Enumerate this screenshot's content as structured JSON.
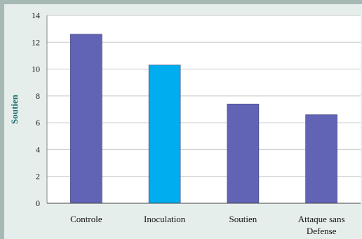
{
  "chart_data": {
    "type": "bar",
    "categories": [
      "Controle",
      "Inoculation",
      "Soutien",
      "Attaque sans Defense"
    ],
    "category_lines": [
      [
        "Controle"
      ],
      [
        "Inoculation"
      ],
      [
        "Soutien"
      ],
      [
        "Attaque sans",
        "Defense"
      ]
    ],
    "values": [
      12.6,
      10.3,
      7.4,
      6.6
    ],
    "ylabel": "Soutien",
    "xlabel": "",
    "title": "",
    "ylim": [
      0,
      14
    ],
    "yticks": [
      0,
      2,
      4,
      6,
      8,
      10,
      12,
      14
    ],
    "grid": true,
    "colors": [
      "#6163b4",
      "#00aeef",
      "#6163b4",
      "#6163b4"
    ]
  }
}
